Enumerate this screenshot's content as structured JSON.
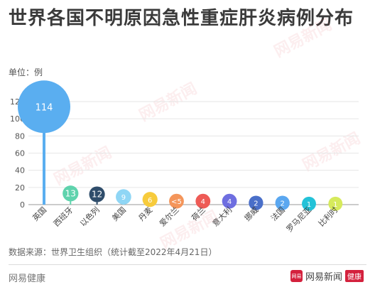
{
  "title": "世界各国不明原因急性重症肝炎病例分布",
  "unit_label": "单位：例",
  "footnote": "数据来源：世界卫生组织（统计截至2022年4月21日）",
  "brand_left": "网易健康",
  "brand_right": {
    "logo": "网易",
    "name": "网易新闻",
    "tag": "健康"
  },
  "watermark": "网易新闻",
  "chart_data": {
    "type": "scatter",
    "title": "世界各国不明原因急性重症肝炎病例分布",
    "ylabel": "单位：例",
    "ylim": [
      0,
      120
    ],
    "yticks": [
      0,
      20,
      40,
      60,
      80,
      100,
      120
    ],
    "categories": [
      "英国",
      "西班牙",
      "以色列",
      "美国",
      "丹麦",
      "爱尔兰",
      "荷兰",
      "意大利",
      "挪威",
      "法国",
      "罗马尼亚",
      "比利时"
    ],
    "values": [
      114,
      13,
      12,
      9,
      6,
      4,
      4,
      4,
      2,
      2,
      1,
      1
    ],
    "labels": [
      "114",
      "13",
      "12",
      "9",
      "6",
      "<5",
      "4",
      "4",
      "2",
      "2",
      "1",
      "1"
    ],
    "colors": [
      "#5aaef0",
      "#5fd3ad",
      "#2f4d6b",
      "#8fd6f5",
      "#f7cb3c",
      "#f4955a",
      "#ee5b56",
      "#6e6ee0",
      "#4a6fc9",
      "#5aa7f0",
      "#23c2d8",
      "#d6ea5c"
    ]
  }
}
